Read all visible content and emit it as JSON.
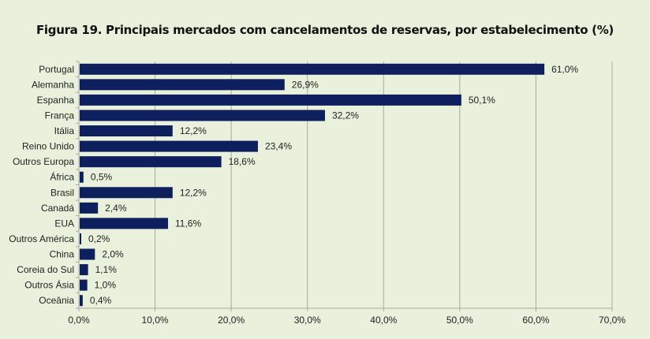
{
  "chart_data": {
    "type": "bar",
    "orientation": "horizontal",
    "title": "Figura 19. Principais mercados com cancelamentos de reservas, por estabelecimento (%)",
    "xlabel": "",
    "ylabel": "",
    "categories": [
      "Portugal",
      "Alemanha",
      "Espanha",
      "França",
      "Itália",
      "Reino Unido",
      "Outros Europa",
      "África",
      "Brasil",
      "Canadá",
      "EUA",
      "Outros América",
      "China",
      "Coreia do Sul",
      "Outros Ásia",
      "Oceânia"
    ],
    "values": [
      61.0,
      26.9,
      50.1,
      32.2,
      12.2,
      23.4,
      18.6,
      0.5,
      12.2,
      2.4,
      11.6,
      0.2,
      2.0,
      1.1,
      1.0,
      0.4
    ],
    "value_labels": [
      "61,0%",
      "26,9%",
      "50,1%",
      "32,2%",
      "12,2%",
      "23,4%",
      "18,6%",
      "0,5%",
      "12,2%",
      "2,4%",
      "11,6%",
      "0,2%",
      "2,0%",
      "1,1%",
      "1,0%",
      "0,4%"
    ],
    "xlim": [
      0,
      70
    ],
    "xticks": [
      0,
      10,
      20,
      30,
      40,
      50,
      60,
      70
    ],
    "xtick_labels": [
      "0,0%",
      "10,0%",
      "20,0%",
      "30,0%",
      "40,0%",
      "50,0%",
      "60,0%",
      "70,0%"
    ],
    "grid": "vertical",
    "legend": "none",
    "colors": {
      "bar": "#0d1f5c",
      "grid": "#a8aca0",
      "background": "#e9f0dc"
    }
  }
}
